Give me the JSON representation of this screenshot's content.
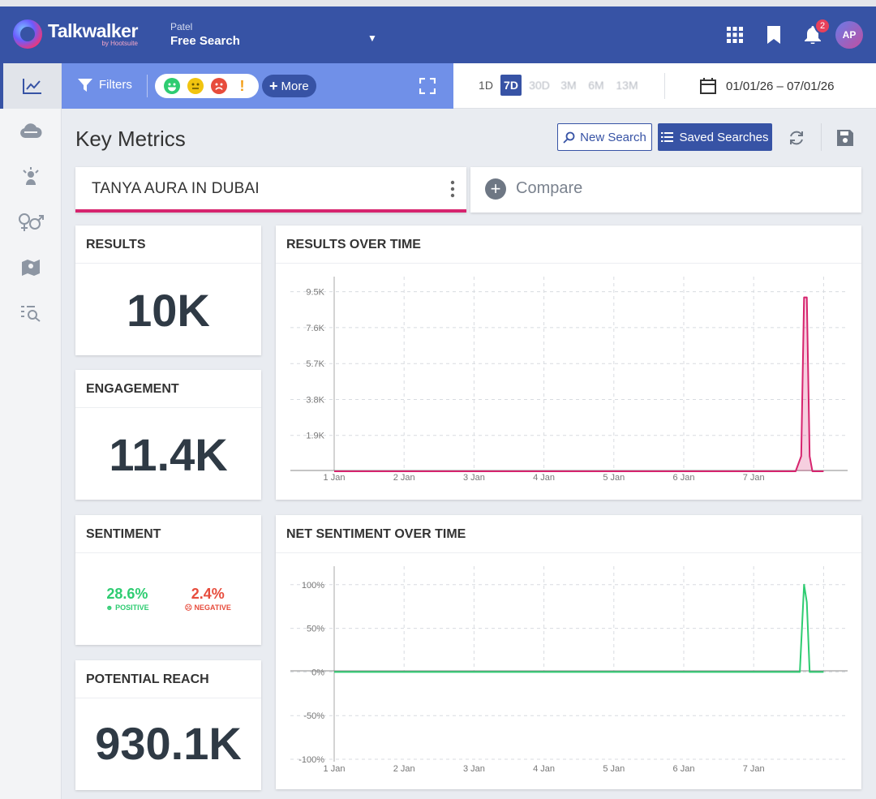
{
  "app": {
    "logo_name": "Talkwalker",
    "logo_sub": "by Hootsuite"
  },
  "project": {
    "name": "Patel",
    "search_type": "Free Search"
  },
  "topbar": {
    "notification_count": "2",
    "avatar_initials": "AP"
  },
  "filterbar": {
    "filters_label": "Filters",
    "more_label": "More"
  },
  "periods": [
    {
      "label": "1D",
      "state": "normal"
    },
    {
      "label": "7D",
      "state": "selected"
    },
    {
      "label": "30D",
      "state": "dim"
    },
    {
      "label": "3M",
      "state": "dim"
    },
    {
      "label": "6M",
      "state": "dim"
    },
    {
      "label": "13M",
      "state": "dim"
    }
  ],
  "date_range": "01/01/26 – 07/01/26",
  "page": {
    "title": "Key Metrics",
    "new_search_label": "New Search",
    "saved_searches_label": "Saved Searches"
  },
  "query": {
    "label": "TANYA AURA IN DUBAI",
    "compare_label": "Compare"
  },
  "metrics": {
    "results": {
      "title": "RESULTS",
      "value": "10K"
    },
    "engagement": {
      "title": "ENGAGEMENT",
      "value": "11.4K"
    },
    "sentiment": {
      "title": "SENTIMENT",
      "positive_value": "28.6%",
      "positive_label": "POSITIVE",
      "negative_value": "2.4%",
      "negative_label": "NEGATIVE"
    },
    "reach": {
      "title": "POTENTIAL REACH",
      "value": "930.1K"
    }
  },
  "colors": {
    "brand": "#3753a5",
    "results_line": "#d6246e",
    "sentiment_line": "#2ecc71",
    "positive": "#2ecc71",
    "negative": "#e74c3c"
  },
  "chart_data": [
    {
      "type": "line",
      "title": "RESULTS OVER TIME",
      "categories": [
        "1 Jan",
        "2 Jan",
        "3 Jan",
        "4 Jan",
        "5 Jan",
        "6 Jan",
        "7 Jan"
      ],
      "y_ticks": [
        "1.9K",
        "3.8K",
        "5.7K",
        "7.6K",
        "9.5K"
      ],
      "y_tick_values": [
        1900,
        3800,
        5700,
        7600,
        9500
      ],
      "ylim": [
        0,
        10000
      ],
      "x": [
        0,
        1,
        2,
        3,
        4,
        5,
        6,
        6.6,
        6.68,
        6.72,
        6.76,
        6.8,
        6.84,
        7.0
      ],
      "values": [
        0,
        0,
        0,
        0,
        0,
        0,
        0,
        0,
        800,
        9200,
        9200,
        800,
        0,
        0
      ]
    },
    {
      "type": "line",
      "title": "NET SENTIMENT OVER TIME",
      "categories": [
        "1 Jan",
        "2 Jan",
        "3 Jan",
        "4 Jan",
        "5 Jan",
        "6 Jan",
        "7 Jan"
      ],
      "y_ticks": [
        "-100%",
        "-50%",
        "0%",
        "50%",
        "100%"
      ],
      "y_tick_values": [
        -100,
        -50,
        0,
        50,
        100
      ],
      "ylim": [
        -100,
        110
      ],
      "x": [
        0,
        1,
        2,
        3,
        4,
        5,
        6,
        6.6,
        6.66,
        6.72,
        6.76,
        6.8,
        6.84,
        7.0
      ],
      "values": [
        0,
        0,
        0,
        0,
        0,
        0,
        0,
        0,
        0,
        100,
        80,
        0,
        0,
        0
      ]
    }
  ]
}
